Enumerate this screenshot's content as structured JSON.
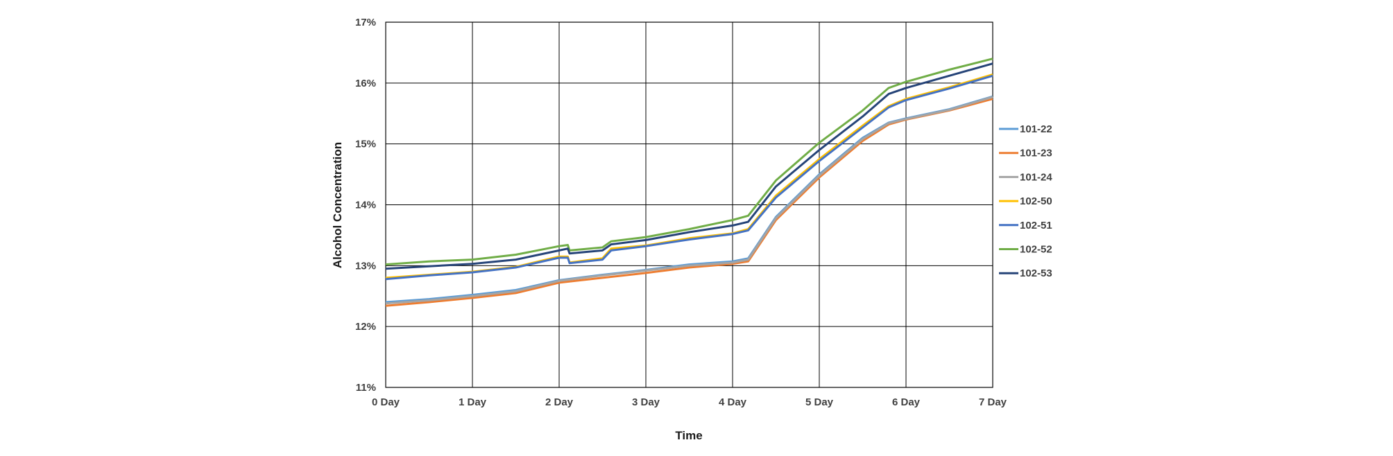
{
  "chart_data": {
    "type": "line",
    "title": "",
    "xlabel": "Time",
    "ylabel": "Alcohol Concentration",
    "xlim": [
      0,
      7
    ],
    "ylim": [
      11,
      17
    ],
    "x_ticks": [
      0,
      1,
      2,
      3,
      4,
      5,
      6,
      7
    ],
    "x_tick_labels": [
      "0 Day",
      "1 Day",
      "2 Day",
      "3 Day",
      "4 Day",
      "5 Day",
      "6 Day",
      "7 Day"
    ],
    "y_ticks": [
      11,
      12,
      13,
      14,
      15,
      16,
      17
    ],
    "y_tick_labels": [
      "11%",
      "12%",
      "13%",
      "14%",
      "15%",
      "16%",
      "17%"
    ],
    "grid": true,
    "legend_position": "right",
    "series": [
      {
        "name": "101-22",
        "color": "#5b9bd5",
        "points": [
          [
            0,
            12.4
          ],
          [
            0.5,
            12.45
          ],
          [
            1,
            12.52
          ],
          [
            1.5,
            12.6
          ],
          [
            2,
            12.76
          ],
          [
            2.5,
            12.85
          ],
          [
            3,
            12.93
          ],
          [
            3.5,
            13.02
          ],
          [
            4,
            13.07
          ],
          [
            4.18,
            13.12
          ],
          [
            4.5,
            13.8
          ],
          [
            5,
            14.5
          ],
          [
            5.5,
            15.1
          ],
          [
            5.8,
            15.35
          ],
          [
            6,
            15.42
          ],
          [
            6.5,
            15.57
          ],
          [
            7,
            15.78
          ]
        ]
      },
      {
        "name": "101-23",
        "color": "#ed7d31",
        "points": [
          [
            0,
            12.34
          ],
          [
            0.5,
            12.4
          ],
          [
            1,
            12.47
          ],
          [
            1.5,
            12.55
          ],
          [
            2,
            12.72
          ],
          [
            2.5,
            12.8
          ],
          [
            3,
            12.88
          ],
          [
            3.5,
            12.97
          ],
          [
            4,
            13.03
          ],
          [
            4.18,
            13.07
          ],
          [
            4.5,
            13.75
          ],
          [
            5,
            14.45
          ],
          [
            5.5,
            15.05
          ],
          [
            5.8,
            15.32
          ],
          [
            6,
            15.4
          ],
          [
            6.5,
            15.55
          ],
          [
            7,
            15.74
          ]
        ]
      },
      {
        "name": "101-24",
        "color": "#a5a5a5",
        "points": [
          [
            0,
            12.38
          ],
          [
            0.5,
            12.43
          ],
          [
            1,
            12.5
          ],
          [
            1.5,
            12.58
          ],
          [
            2,
            12.75
          ],
          [
            2.5,
            12.84
          ],
          [
            3,
            12.92
          ],
          [
            3.5,
            13.0
          ],
          [
            4,
            13.05
          ],
          [
            4.18,
            13.1
          ],
          [
            4.5,
            13.78
          ],
          [
            5,
            14.48
          ],
          [
            5.5,
            15.08
          ],
          [
            5.8,
            15.34
          ],
          [
            6,
            15.41
          ],
          [
            6.5,
            15.56
          ],
          [
            7,
            15.77
          ]
        ]
      },
      {
        "name": "102-50",
        "color": "#ffc000",
        "points": [
          [
            0,
            12.8
          ],
          [
            0.5,
            12.85
          ],
          [
            1,
            12.9
          ],
          [
            1.5,
            12.98
          ],
          [
            2,
            13.15
          ],
          [
            2.1,
            13.15
          ],
          [
            2.12,
            13.05
          ],
          [
            2.5,
            13.12
          ],
          [
            2.6,
            13.28
          ],
          [
            3,
            13.33
          ],
          [
            3.5,
            13.45
          ],
          [
            4,
            13.53
          ],
          [
            4.18,
            13.6
          ],
          [
            4.5,
            14.15
          ],
          [
            5,
            14.75
          ],
          [
            5.5,
            15.3
          ],
          [
            5.8,
            15.62
          ],
          [
            6,
            15.74
          ],
          [
            6.5,
            15.93
          ],
          [
            7,
            16.14
          ]
        ]
      },
      {
        "name": "102-51",
        "color": "#4472c4",
        "points": [
          [
            0,
            12.78
          ],
          [
            0.5,
            12.84
          ],
          [
            1,
            12.89
          ],
          [
            1.5,
            12.97
          ],
          [
            2,
            13.13
          ],
          [
            2.1,
            13.13
          ],
          [
            2.12,
            13.04
          ],
          [
            2.5,
            13.1
          ],
          [
            2.6,
            13.25
          ],
          [
            3,
            13.32
          ],
          [
            3.5,
            13.43
          ],
          [
            4,
            13.52
          ],
          [
            4.18,
            13.58
          ],
          [
            4.5,
            14.12
          ],
          [
            5,
            14.72
          ],
          [
            5.5,
            15.27
          ],
          [
            5.8,
            15.6
          ],
          [
            6,
            15.72
          ],
          [
            6.5,
            15.91
          ],
          [
            7,
            16.12
          ]
        ]
      },
      {
        "name": "102-52",
        "color": "#70ad47",
        "points": [
          [
            0,
            13.02
          ],
          [
            0.5,
            13.07
          ],
          [
            1,
            13.1
          ],
          [
            1.5,
            13.18
          ],
          [
            2,
            13.32
          ],
          [
            2.1,
            13.34
          ],
          [
            2.12,
            13.25
          ],
          [
            2.5,
            13.3
          ],
          [
            2.6,
            13.4
          ],
          [
            3,
            13.47
          ],
          [
            3.5,
            13.6
          ],
          [
            4,
            13.75
          ],
          [
            4.18,
            13.82
          ],
          [
            4.5,
            14.4
          ],
          [
            5,
            15.02
          ],
          [
            5.5,
            15.55
          ],
          [
            5.8,
            15.92
          ],
          [
            6,
            16.02
          ],
          [
            6.5,
            16.22
          ],
          [
            7,
            16.4
          ]
        ]
      },
      {
        "name": "102-53",
        "color": "#264478",
        "points": [
          [
            0,
            12.95
          ],
          [
            0.5,
            12.99
          ],
          [
            1,
            13.03
          ],
          [
            1.5,
            13.1
          ],
          [
            2,
            13.25
          ],
          [
            2.1,
            13.28
          ],
          [
            2.12,
            13.2
          ],
          [
            2.5,
            13.25
          ],
          [
            2.6,
            13.35
          ],
          [
            3,
            13.42
          ],
          [
            3.5,
            13.55
          ],
          [
            4,
            13.66
          ],
          [
            4.18,
            13.72
          ],
          [
            4.5,
            14.3
          ],
          [
            5,
            14.9
          ],
          [
            5.5,
            15.45
          ],
          [
            5.8,
            15.82
          ],
          [
            6,
            15.92
          ],
          [
            6.5,
            16.12
          ],
          [
            7,
            16.32
          ]
        ]
      }
    ]
  }
}
